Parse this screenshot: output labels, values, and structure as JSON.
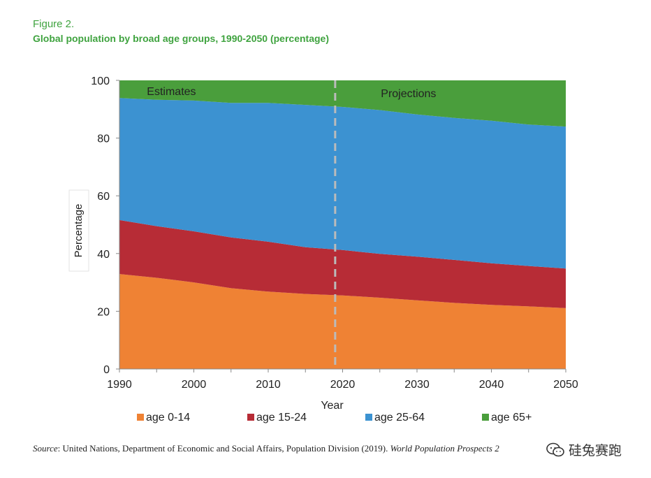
{
  "figure_label": "Figure 2.",
  "figure_title": "Global population by broad age groups, 1990-2050 (percentage)",
  "source": {
    "prefix": "Source",
    "text": ": United Nations, Department of Economic and Social Affairs, Population Division (2019). ",
    "italic": "World Population Prospects 2"
  },
  "watermark": {
    "text": "硅兔赛跑",
    "icon": "wechat-icon"
  },
  "colors": {
    "age_0_14": "#ef8234",
    "age_15_24": "#b72c36",
    "age_25_64": "#3c92d1",
    "age_65_plus": "#4a9e3c",
    "divider": "#bbbbbb",
    "title_green": "#3fa33f"
  },
  "chart_data": {
    "type": "area",
    "stacked": true,
    "title": "",
    "xlabel": "Year",
    "ylabel": "Percentage",
    "x": [
      1990,
      1995,
      2000,
      2005,
      2010,
      2015,
      2020,
      2025,
      2030,
      2035,
      2040,
      2045,
      2050
    ],
    "xlim": [
      1990,
      2050
    ],
    "ylim": [
      0,
      100
    ],
    "xticks": [
      "1990",
      "2000",
      "2010",
      "2020",
      "2030",
      "2040",
      "2050"
    ],
    "yticks": [
      "0",
      "20",
      "40",
      "60",
      "80",
      "100"
    ],
    "series": [
      {
        "name": "age 0-14",
        "values": [
          32.9,
          31.6,
          30.0,
          28.0,
          26.8,
          26.0,
          25.5,
          24.7,
          23.8,
          22.9,
          22.2,
          21.7,
          21.1
        ]
      },
      {
        "name": "age 15-24",
        "values": [
          18.7,
          17.9,
          17.7,
          17.6,
          17.3,
          16.2,
          15.7,
          15.2,
          15.1,
          14.9,
          14.4,
          14.0,
          13.7
        ]
      },
      {
        "name": "age 25-64",
        "values": [
          42.3,
          43.8,
          45.3,
          46.6,
          48.1,
          49.3,
          49.6,
          49.8,
          49.3,
          49.2,
          49.4,
          49.0,
          49.2
        ]
      },
      {
        "name": "age 65+",
        "values": [
          6.1,
          6.7,
          7.0,
          7.8,
          7.8,
          8.5,
          9.2,
          10.3,
          11.8,
          13.0,
          14.0,
          15.3,
          16.0
        ]
      }
    ],
    "annotations": [
      {
        "text": "Estimates",
        "region": "estimates"
      },
      {
        "text": "Projections",
        "region": "projections"
      }
    ],
    "divider_year": 2019,
    "legend_position": "bottom"
  }
}
